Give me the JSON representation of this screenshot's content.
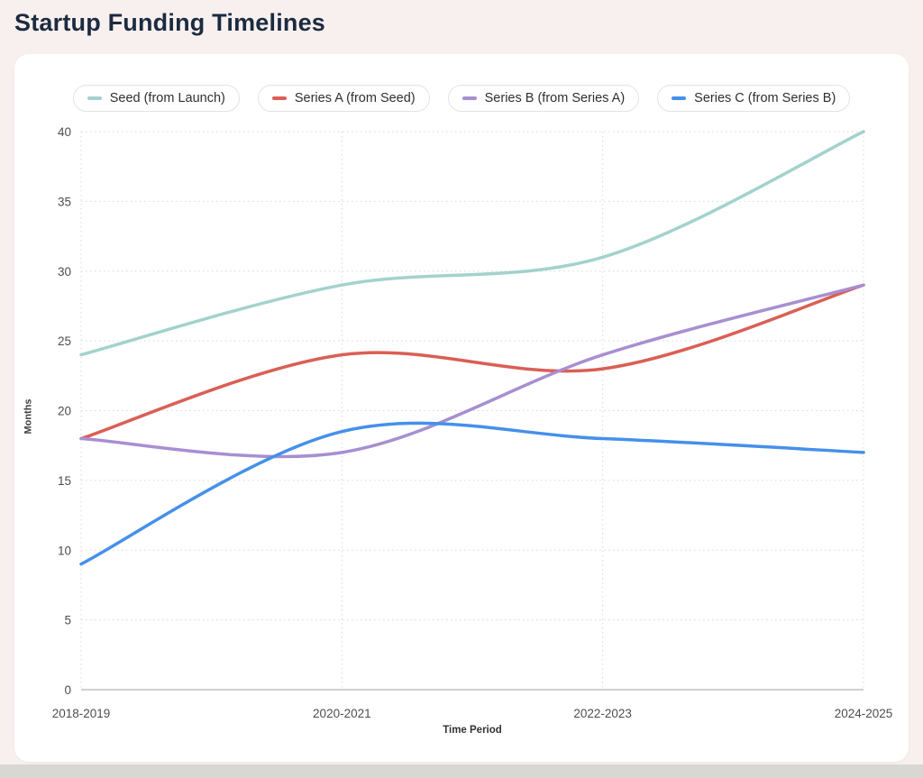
{
  "page": {
    "title": "Startup Funding Timelines"
  },
  "theme": {
    "page_bg": "#f8f0ef",
    "card_bg": "#ffffff",
    "title_color": "#1c2b40",
    "axis_text": "#4d4d4d",
    "grid_color": "#d9d9d9",
    "axis_line": "#b5b5b5",
    "legend_border": "#e3e3e3",
    "legend_text": "#2f2f2f",
    "bottom_strip": "#d8d7d3"
  },
  "chart_data": {
    "type": "line",
    "title": "Startup Funding Timelines",
    "x_label": "Time Period",
    "y_label": "Months",
    "categories": [
      "2018-2019",
      "2020-2021",
      "2022-2023",
      "2024-2025"
    ],
    "y_ticks": [
      0,
      5,
      10,
      15,
      20,
      25,
      30,
      35,
      40
    ],
    "ylim": [
      0,
      40
    ],
    "grid": "dotted",
    "legend_position": "top",
    "line_style": "smooth",
    "series": [
      {
        "name": "Seed (from Launch)",
        "color": "#a3d2cc",
        "values": [
          24,
          29,
          31,
          40
        ]
      },
      {
        "name": "Series A (from Seed)",
        "color": "#da5f55",
        "values": [
          18,
          24,
          23,
          29
        ]
      },
      {
        "name": "Series B (from Series A)",
        "color": "#a78fd1",
        "values": [
          18,
          17,
          24,
          29
        ]
      },
      {
        "name": "Series C (from Series B)",
        "color": "#4590ea",
        "values": [
          9,
          18.5,
          18,
          17
        ]
      }
    ]
  }
}
